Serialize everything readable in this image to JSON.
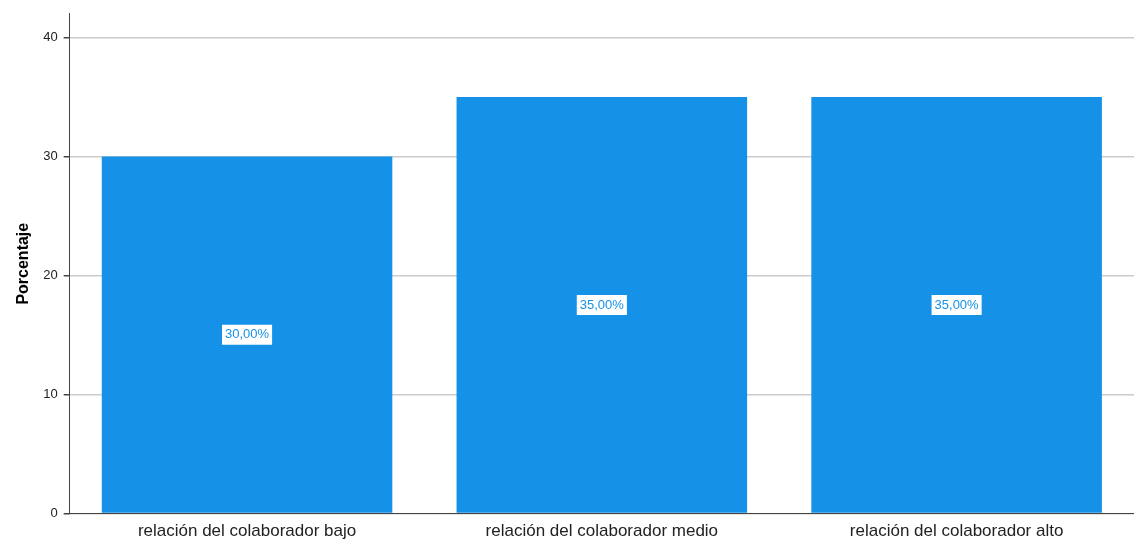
{
  "chart_data": {
    "type": "bar",
    "ylabel": "Porcentaje",
    "categories": [
      "relación del colaborador bajo",
      "relación del colaborador medio",
      "relación del colaborador alto"
    ],
    "values": [
      30,
      35,
      35
    ],
    "color": "#1591e8",
    "value_labels": [
      "30,00%",
      "35,00%",
      "35,00%"
    ],
    "ylim": [
      0,
      42
    ],
    "yticks": [
      0,
      10,
      20,
      30,
      40
    ],
    "grid": "y"
  }
}
